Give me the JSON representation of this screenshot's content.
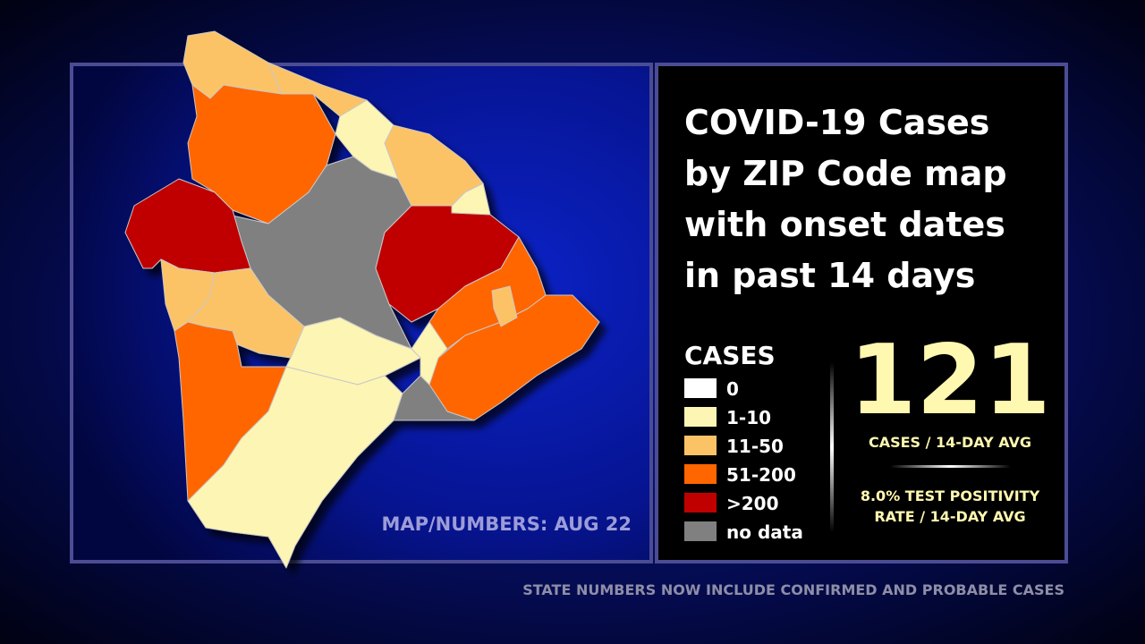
{
  "panel": {
    "title": [
      "COVID-19 Cases",
      "by ZIP Code map",
      "with onset dates",
      "in past 14 days"
    ],
    "source": "MAP/NUMBERS: AUG 22"
  },
  "legend": {
    "heading": "CASES",
    "items": [
      {
        "label": "0",
        "color": "#ffffff"
      },
      {
        "label": "1-10",
        "color": "#fdf5b4"
      },
      {
        "label": "11-50",
        "color": "#fcc366"
      },
      {
        "label": "51-200",
        "color": "#ff6600"
      },
      {
        "label": ">200",
        "color": "#c00000"
      },
      {
        "label": "no data",
        "color": "#808080"
      }
    ]
  },
  "stats": {
    "cases": 121,
    "cases_label": "CASES / 14-DAY AVG",
    "positivity": [
      "8.0% TEST POSITIVITY",
      "RATE / 14-DAY AVG"
    ]
  },
  "footer": "STATE NUMBERS NOW INCLUDE CONFIRMED AND PROBABLE CASES"
}
